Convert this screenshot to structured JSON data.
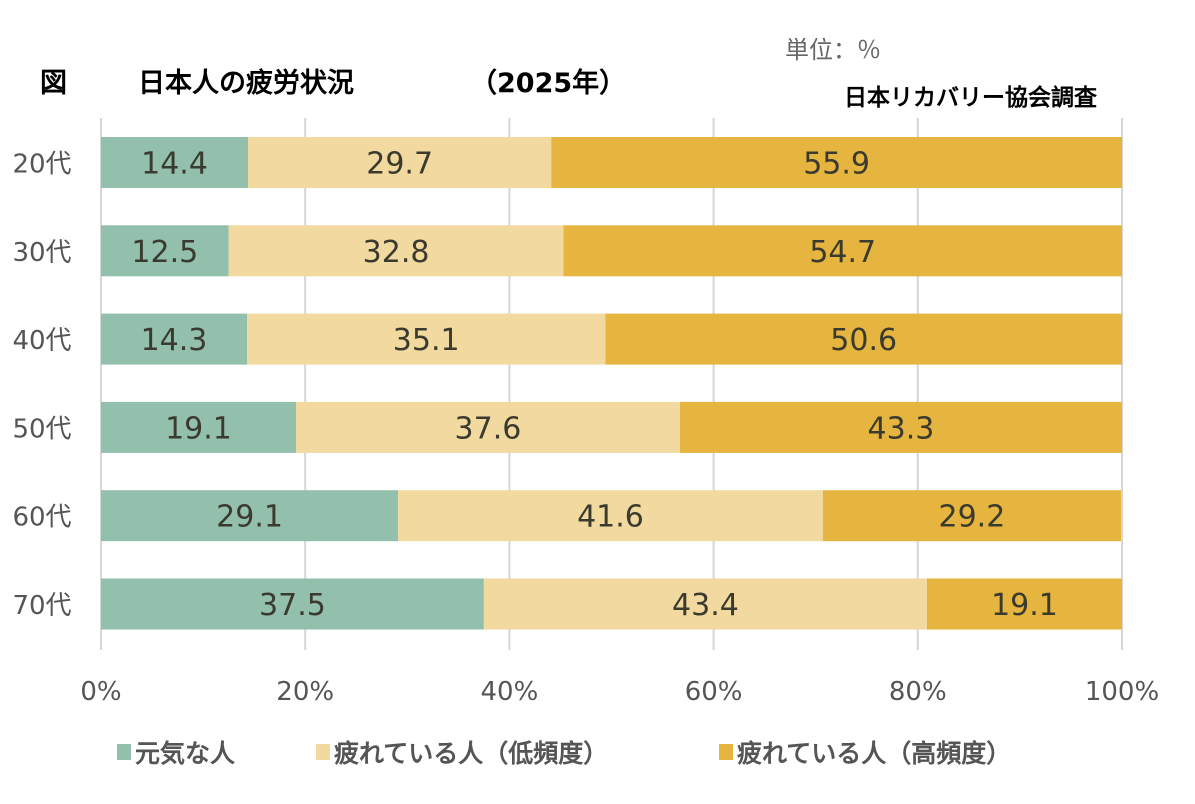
{
  "header": {
    "figure_mark": "図",
    "title": "日本人の疲労状況",
    "year": "（2025年）",
    "unit": "単位：％",
    "source": "日本リカバリー協会調査"
  },
  "chart_data": {
    "type": "bar",
    "orientation": "horizontal",
    "stacked": true,
    "title": "日本人の疲労状況（2025年）",
    "unit": "%",
    "categories": [
      "20代",
      "30代",
      "40代",
      "50代",
      "60代",
      "70代"
    ],
    "series": [
      {
        "name": "元気な人",
        "color": "#93bfad",
        "values": [
          14.4,
          12.5,
          14.3,
          19.1,
          29.1,
          37.5
        ]
      },
      {
        "name": "疲れている人（低頻度）",
        "color": "#f1d9a0",
        "values": [
          29.7,
          32.8,
          35.1,
          37.6,
          41.6,
          43.4
        ]
      },
      {
        "name": "疲れている人（高頻度）",
        "color": "#e5b53f",
        "values": [
          55.9,
          54.7,
          50.6,
          43.3,
          29.2,
          19.1
        ]
      }
    ],
    "xlim": [
      0,
      100
    ],
    "xticks": [
      0,
      20,
      40,
      60,
      80,
      100
    ],
    "xtick_labels": [
      "0%",
      "20%",
      "40%",
      "60%",
      "80%",
      "100%"
    ],
    "grid": true,
    "legend_position": "bottom",
    "xlabel": "",
    "ylabel": ""
  }
}
